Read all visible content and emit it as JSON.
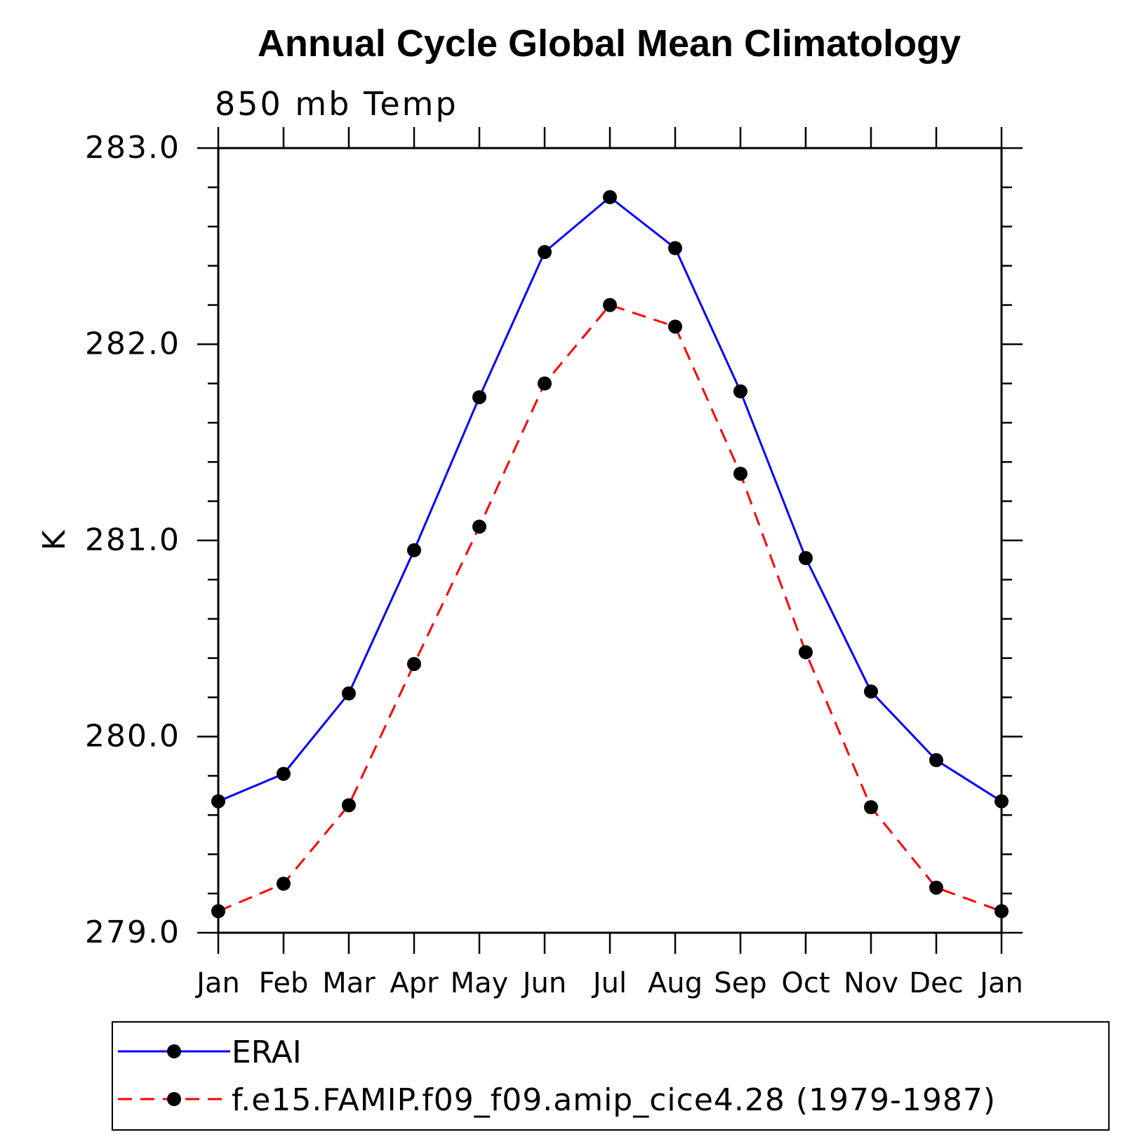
{
  "chart_data": {
    "type": "line",
    "title": "Annual Cycle Global Mean Climatology",
    "subtitle": "850 mb Temp",
    "ylabel": "K",
    "xlabel": "",
    "categories": [
      "Jan",
      "Feb",
      "Mar",
      "Apr",
      "May",
      "Jun",
      "Jul",
      "Aug",
      "Sep",
      "Oct",
      "Nov",
      "Dec",
      "Jan"
    ],
    "ylim": [
      279.0,
      283.0
    ],
    "yticks": [
      "279.0",
      "280.0",
      "281.0",
      "282.0",
      "283.0"
    ],
    "y_minor_step": 0.2,
    "grid": false,
    "legend_position": "bottom",
    "series": [
      {
        "name": "ERAI",
        "color": "#0000ff",
        "dash": "solid",
        "marker": "filled-circle",
        "values": [
          279.67,
          279.81,
          280.22,
          280.95,
          281.73,
          282.47,
          282.75,
          282.49,
          281.76,
          280.91,
          280.23,
          279.88,
          279.67
        ]
      },
      {
        "name": "f.e15.FAMIP.f09_f09.amip_cice4.28 (1979-1987)",
        "color": "#ff0000",
        "dash": "dashed",
        "marker": "filled-circle",
        "values": [
          279.11,
          279.25,
          279.65,
          280.37,
          281.07,
          281.8,
          282.2,
          282.09,
          281.34,
          280.43,
          279.64,
          279.23,
          279.11
        ]
      }
    ]
  }
}
